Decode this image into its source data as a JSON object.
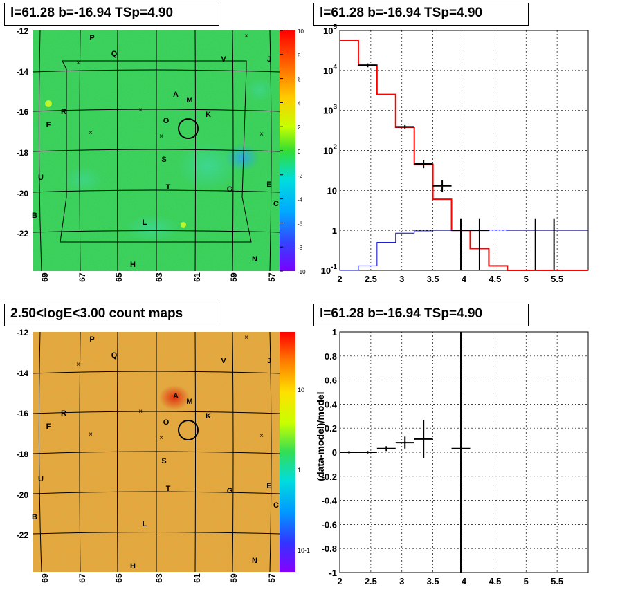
{
  "panels": {
    "tl_title": "l=61.28 b=-16.94 TSp=4.90",
    "tr_title": "l=61.28 b=-16.94 TSp=4.90",
    "bl_title": "2.50<logE<3.00 count maps",
    "br_title": "l=61.28 b=-16.94 TSp=4.90"
  },
  "colors": {
    "model_line": "#ff0000",
    "background_line": "#0000cc",
    "data_points": "#000000",
    "grid": "#000000"
  },
  "skymap_labels": {
    "x_ticks": [
      "69",
      "67",
      "65",
      "63",
      "61",
      "59",
      "57"
    ],
    "y_ticks": [
      "-12",
      "-14",
      "-16",
      "-18",
      "-20",
      "-22"
    ],
    "sources": [
      "P",
      "Q",
      "V",
      "J",
      "A",
      "M",
      "R",
      "O",
      "K",
      "F",
      "S",
      "U",
      "T",
      "G",
      "E",
      "C",
      "B",
      "L",
      "H",
      "N"
    ]
  },
  "colorbar_top": {
    "ticks": [
      "10",
      "8",
      "6",
      "4",
      "2",
      "0",
      "-2",
      "-4",
      "-6",
      "-8",
      "-10"
    ]
  },
  "colorbar_bottom": {
    "ticks": [
      "10",
      "1",
      "10-1"
    ]
  },
  "chart_data": [
    {
      "type": "line",
      "subtype": "spectrum",
      "title": "l=61.28 b=-16.94 TSp=4.90",
      "xlim": [
        2,
        6
      ],
      "ylim": [
        0.1,
        100000
      ],
      "ylog": true,
      "grid": true,
      "x_ticks": [
        "2",
        "2.5",
        "3",
        "3.5",
        "4",
        "4.5",
        "5",
        "5.5"
      ],
      "y_ticks": [
        "10^-1",
        "1",
        "10",
        "10^2",
        "10^3",
        "10^4",
        "10^5"
      ],
      "series": [
        {
          "role": "model",
          "edges": [
            2.0,
            2.3,
            2.6,
            2.9,
            3.2,
            3.5,
            3.8,
            4.1,
            4.4,
            4.7,
            5.0,
            5.3,
            5.6,
            6.0
          ],
          "values": [
            55000,
            13500,
            2500,
            380,
            45,
            6,
            1,
            0.35,
            0.13,
            0.1,
            0.1,
            0.1,
            0.1
          ]
        },
        {
          "role": "background",
          "edges": [
            2.0,
            2.3,
            2.6,
            2.9,
            3.2,
            3.5,
            3.8,
            4.1,
            4.4,
            4.7,
            5.0,
            5.3,
            5.6,
            6.0
          ],
          "values": [
            0.1,
            0.13,
            0.5,
            0.85,
            0.97,
            1.0,
            1.02,
            1.02,
            1.02,
            1.0,
            1.0,
            1.0,
            1.0
          ]
        },
        {
          "role": "data",
          "points": [
            {
              "x": 2.45,
              "y": 13500,
              "lo": 12000,
              "hi": 15000,
              "xerr": 0.15
            },
            {
              "x": 3.05,
              "y": 390,
              "lo": 350,
              "hi": 430,
              "xerr": 0.15
            },
            {
              "x": 3.35,
              "y": 46,
              "lo": 36,
              "hi": 58,
              "xerr": 0.15
            },
            {
              "x": 3.65,
              "y": 13,
              "lo": 9,
              "hi": 18,
              "xerr": 0.15
            },
            {
              "x": 3.95,
              "y": 1,
              "lo": 0.1,
              "hi": 2,
              "xerr": 0.15
            },
            {
              "x": 4.25,
              "y": 1,
              "lo": 0.1,
              "hi": 2,
              "xerr": 0.15
            },
            {
              "x": 5.15,
              "y": 1,
              "lo": 0.1,
              "hi": 2,
              "xerr": 0
            },
            {
              "x": 5.45,
              "y": 1,
              "lo": 0.1,
              "hi": 2,
              "xerr": 0
            }
          ]
        }
      ]
    },
    {
      "type": "scatter",
      "subtype": "residuals",
      "title": "l=61.28 b=-16.94 TSp=4.90",
      "ylabel": "(data-model)/model",
      "xlim": [
        2,
        6
      ],
      "ylim": [
        -1,
        1
      ],
      "grid": true,
      "x_ticks": [
        "2",
        "2.5",
        "3",
        "3.5",
        "4",
        "4.5",
        "5",
        "5.5"
      ],
      "y_ticks": [
        "-1",
        "-0.8",
        "-0.6",
        "-0.4",
        "-0.2",
        "0",
        "0.2",
        "0.4",
        "0.6",
        "0.8",
        "1"
      ],
      "points": [
        {
          "x": 2.15,
          "y": 0.0,
          "lo": -0.01,
          "hi": 0.01,
          "xerr": 0.15
        },
        {
          "x": 2.45,
          "y": 0.0,
          "lo": -0.01,
          "hi": 0.01,
          "xerr": 0.15
        },
        {
          "x": 2.75,
          "y": 0.03,
          "lo": 0.01,
          "hi": 0.05,
          "xerr": 0.15
        },
        {
          "x": 3.05,
          "y": 0.08,
          "lo": 0.03,
          "hi": 0.13,
          "xerr": 0.15
        },
        {
          "x": 3.35,
          "y": 0.11,
          "lo": -0.05,
          "hi": 0.27,
          "xerr": 0.15
        },
        {
          "x": 3.95,
          "y": 0.03,
          "lo": -1.0,
          "hi": 1.0,
          "xerr": 0.15
        }
      ]
    }
  ]
}
